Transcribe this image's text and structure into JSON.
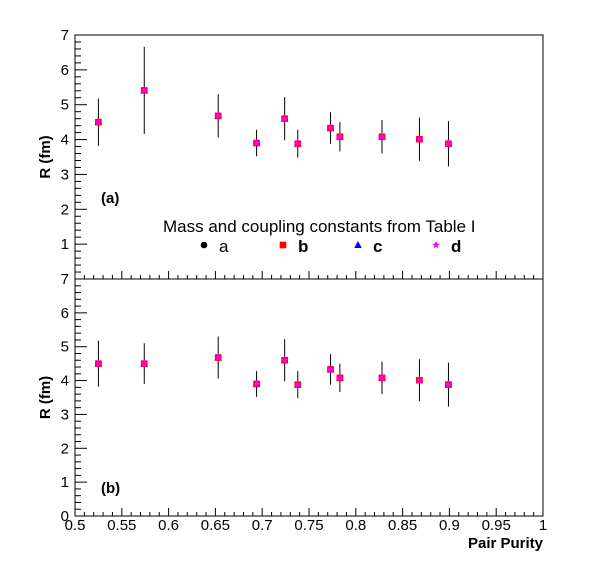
{
  "chart_data": {
    "type": "scatter",
    "xlabel": "Pair Purity",
    "xlim": [
      0.5,
      1.0
    ],
    "x_ticks": [
      0.5,
      0.55,
      0.6,
      0.65,
      0.7,
      0.75,
      0.8,
      0.85,
      0.9,
      0.95,
      1.0
    ],
    "x_tick_labels": [
      "0.5",
      "0.55",
      "0.6",
      "0.65",
      "0.7",
      "0.75",
      "0.8",
      "0.85",
      "0.9",
      "0.95",
      "1"
    ],
    "legend": {
      "title": "Mass and coupling constants from Table I",
      "entries": [
        {
          "label": "a",
          "marker": "circle",
          "color": "#000000"
        },
        {
          "label": "b",
          "marker": "square",
          "color": "#ff0000"
        },
        {
          "label": "c",
          "marker": "triangle",
          "color": "#0000ff"
        },
        {
          "label": "d",
          "marker": "star",
          "color": "#ff00ff"
        }
      ]
    },
    "panels": [
      {
        "tag": "(a)",
        "ylabel": "R (fm)",
        "ylim": [
          0,
          7
        ],
        "y_ticks": [
          1,
          2,
          3,
          4,
          5,
          6,
          7
        ],
        "y_tick_labels": [
          "1",
          "2",
          "3",
          "4",
          "5",
          "6",
          "7"
        ],
        "points": [
          {
            "x": 0.525,
            "y": 4.5,
            "err": 0.68
          },
          {
            "x": 0.574,
            "y": 5.41,
            "err": 1.25
          },
          {
            "x": 0.653,
            "y": 4.68,
            "err": 0.62
          },
          {
            "x": 0.694,
            "y": 3.9,
            "err": 0.38
          },
          {
            "x": 0.724,
            "y": 4.6,
            "err": 0.62
          },
          {
            "x": 0.738,
            "y": 3.88,
            "err": 0.4
          },
          {
            "x": 0.773,
            "y": 4.33,
            "err": 0.45
          },
          {
            "x": 0.783,
            "y": 4.08,
            "err": 0.42
          },
          {
            "x": 0.828,
            "y": 4.08,
            "err": 0.48
          },
          {
            "x": 0.868,
            "y": 4.01,
            "err": 0.62
          },
          {
            "x": 0.899,
            "y": 3.88,
            "err": 0.65
          }
        ]
      },
      {
        "tag": "(b)",
        "ylabel": "R (fm)",
        "ylim": [
          0,
          7
        ],
        "y_ticks": [
          0,
          1,
          2,
          3,
          4,
          5,
          6,
          7
        ],
        "y_tick_labels": [
          "0",
          "1",
          "2",
          "3",
          "4",
          "5",
          "6",
          "7"
        ],
        "points": [
          {
            "x": 0.525,
            "y": 4.5,
            "err": 0.68
          },
          {
            "x": 0.574,
            "y": 4.5,
            "err": 0.6
          },
          {
            "x": 0.653,
            "y": 4.68,
            "err": 0.62
          },
          {
            "x": 0.694,
            "y": 3.9,
            "err": 0.38
          },
          {
            "x": 0.724,
            "y": 4.6,
            "err": 0.62
          },
          {
            "x": 0.738,
            "y": 3.88,
            "err": 0.4
          },
          {
            "x": 0.773,
            "y": 4.33,
            "err": 0.45
          },
          {
            "x": 0.783,
            "y": 4.08,
            "err": 0.42
          },
          {
            "x": 0.828,
            "y": 4.08,
            "err": 0.48
          },
          {
            "x": 0.868,
            "y": 4.01,
            "err": 0.62
          },
          {
            "x": 0.899,
            "y": 3.88,
            "err": 0.65
          }
        ]
      }
    ]
  }
}
